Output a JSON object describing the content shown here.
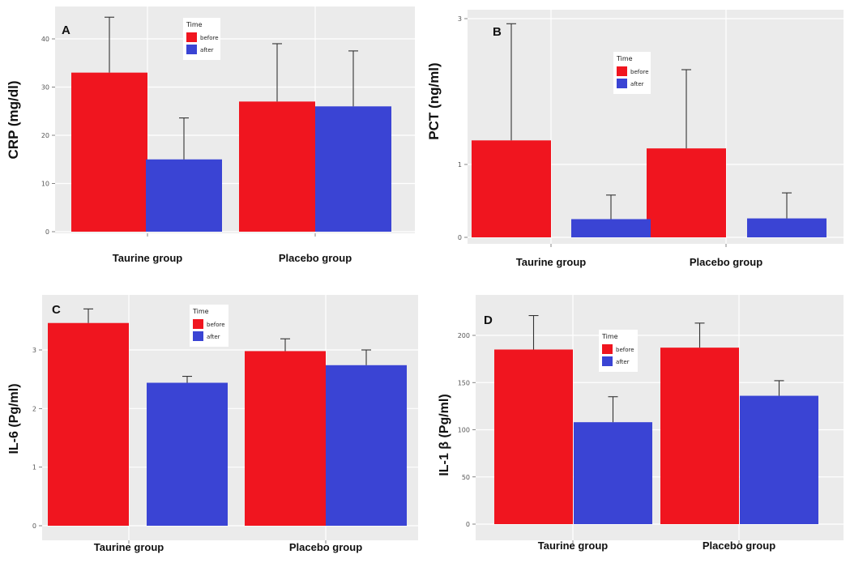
{
  "colors": {
    "before": "#f0151f",
    "after": "#3a44d4",
    "plot_bg": "#ebebeb",
    "grid": "#ffffff",
    "errorbar": "#333333"
  },
  "legend": {
    "title": "Time",
    "before_label": "before",
    "after_label": "after"
  },
  "chart_data": [
    {
      "id": "A",
      "type": "bar",
      "panel_label": "A",
      "ylabel": "CRP  (mg/dl)",
      "categories": [
        "Taurine group",
        "Placebo group"
      ],
      "series": [
        {
          "name": "before",
          "values": [
            33,
            27
          ],
          "error_upper": [
            44.5,
            39
          ]
        },
        {
          "name": "after",
          "values": [
            15,
            26
          ],
          "error_upper": [
            23.6,
            37.5
          ]
        }
      ],
      "ylim": [
        0,
        45
      ],
      "yticks": [
        0,
        10,
        20,
        30,
        40
      ],
      "ytick_labels": [
        "0",
        "10",
        "20",
        "30",
        "40"
      ]
    },
    {
      "id": "B",
      "type": "bar",
      "panel_label": "B",
      "ylabel": "PCT (ng/ml)",
      "categories": [
        "Taurine group",
        "Placebo group"
      ],
      "series": [
        {
          "name": "before",
          "values": [
            1.33,
            1.22
          ],
          "error_upper": [
            2.93,
            2.3
          ]
        },
        {
          "name": "after",
          "values": [
            0.25,
            0.26
          ],
          "error_upper": [
            0.58,
            0.61
          ]
        }
      ],
      "ylim": [
        0,
        3
      ],
      "yticks": [
        0,
        1,
        3
      ],
      "ytick_labels": [
        "0",
        "1",
        "3"
      ]
    },
    {
      "id": "C",
      "type": "bar",
      "panel_label": "C",
      "ylabel": "IL-6 (Pg/ml)",
      "categories": [
        "Taurine group",
        "Placebo group"
      ],
      "series": [
        {
          "name": "before",
          "values": [
            3.46,
            2.98
          ],
          "error_upper": [
            3.7,
            3.19
          ]
        },
        {
          "name": "after",
          "values": [
            2.44,
            2.74
          ],
          "error_upper": [
            2.55,
            3.0
          ]
        }
      ],
      "ylim": [
        0,
        3.75
      ],
      "yticks": [
        0,
        1,
        2,
        3
      ],
      "ytick_labels": [
        "0",
        "1",
        "2",
        "3"
      ]
    },
    {
      "id": "D",
      "type": "bar",
      "panel_label": "D",
      "ylabel": "IL-1 β (Pg/ml)",
      "categories": [
        "Taurine group",
        "Placebo group"
      ],
      "series": [
        {
          "name": "before",
          "values": [
            185,
            187
          ],
          "error_upper": [
            221,
            213
          ]
        },
        {
          "name": "after",
          "values": [
            108,
            136
          ],
          "error_upper": [
            135,
            152
          ]
        }
      ],
      "ylim": [
        0,
        228
      ],
      "yticks": [
        0,
        50,
        100,
        150,
        200
      ],
      "ytick_labels": [
        "0",
        "50",
        "100",
        "150",
        "200"
      ]
    }
  ]
}
